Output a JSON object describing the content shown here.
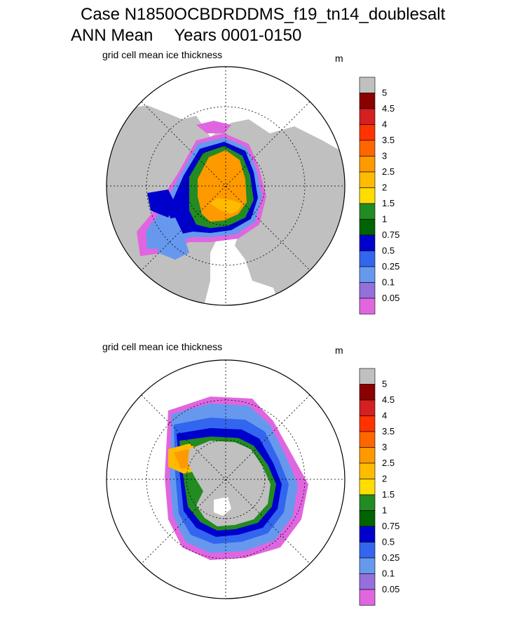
{
  "title": "Case N1850OCBDRDDMS_f19_tn14_doublesalt",
  "subtitle_left": "ANN Mean",
  "subtitle_right": "Years 0001-0150",
  "panels": [
    {
      "label": "grid cell mean ice thickness",
      "unit": "m",
      "hemisphere": "north"
    },
    {
      "label": "grid cell mean ice thickness",
      "unit": "m",
      "hemisphere": "south"
    }
  ],
  "colorbar": {
    "labels": [
      "5",
      "4.5",
      "4",
      "3.5",
      "3",
      "2.5",
      "2",
      "1.5",
      "1",
      "0.75",
      "0.5",
      "0.25",
      "0.1",
      "0.05"
    ],
    "colors": [
      "#c0c0c0",
      "#8b0000",
      "#d42020",
      "#ff3300",
      "#ff6600",
      "#ff9900",
      "#ffbb00",
      "#ffdd00",
      "#228b22",
      "#006400",
      "#0000cd",
      "#3366ee",
      "#6699ee",
      "#9370db",
      "#e066e0"
    ]
  },
  "colors": {
    "land": "#c0c0c0",
    "ocean": "#ffffff",
    "grid": "#000000"
  }
}
